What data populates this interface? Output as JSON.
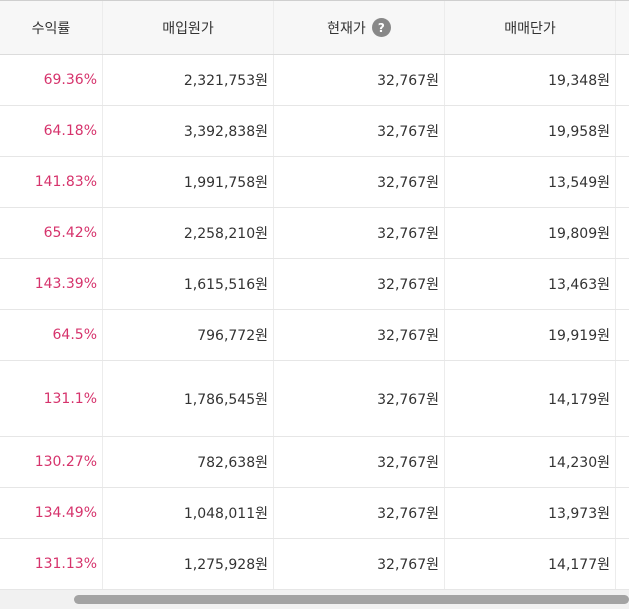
{
  "headers": {
    "rate": "수익률",
    "cost": "매입원가",
    "current": "현재가",
    "unit": "매매단가",
    "help_icon": "?"
  },
  "rows": [
    {
      "rate": "69.36%",
      "cost": "2,321,753원",
      "current": "32,767원",
      "unit": "19,348원"
    },
    {
      "rate": "64.18%",
      "cost": "3,392,838원",
      "current": "32,767원",
      "unit": "19,958원"
    },
    {
      "rate": "141.83%",
      "cost": "1,991,758원",
      "current": "32,767원",
      "unit": "13,549원"
    },
    {
      "rate": "65.42%",
      "cost": "2,258,210원",
      "current": "32,767원",
      "unit": "19,809원"
    },
    {
      "rate": "143.39%",
      "cost": "1,615,516원",
      "current": "32,767원",
      "unit": "13,463원"
    },
    {
      "rate": "64.5%",
      "cost": "796,772원",
      "current": "32,767원",
      "unit": "19,919원"
    },
    {
      "rate": "131.1%",
      "cost": "1,786,545원",
      "current": "32,767원",
      "unit": "14,179원"
    },
    {
      "rate": "130.27%",
      "cost": "782,638원",
      "current": "32,767원",
      "unit": "14,230원"
    },
    {
      "rate": "134.49%",
      "cost": "1,048,011원",
      "current": "32,767원",
      "unit": "13,973원"
    },
    {
      "rate": "131.13%",
      "cost": "1,275,928원",
      "current": "32,767원",
      "unit": "14,177원"
    }
  ],
  "colors": {
    "profit": "#d6336c",
    "header_bg": "#f7f7f7"
  }
}
